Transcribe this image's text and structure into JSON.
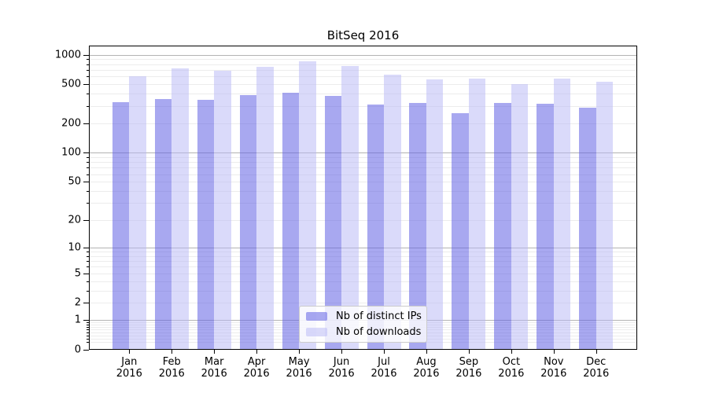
{
  "chart_data": {
    "type": "bar",
    "title": "BitSeq 2016",
    "categories": [
      "Jan",
      "Feb",
      "Mar",
      "Apr",
      "May",
      "Jun",
      "Jul",
      "Aug",
      "Sep",
      "Oct",
      "Nov",
      "Dec"
    ],
    "x_sublabel": "2016",
    "series": [
      {
        "name": "Nb of distinct IPs",
        "color": "rgba(97,97,228,0.55)",
        "values": [
          330,
          355,
          345,
          390,
          410,
          380,
          310,
          320,
          255,
          320,
          315,
          290
        ]
      },
      {
        "name": "Nb of downloads",
        "color": "rgba(181,181,245,0.5)",
        "values": [
          600,
          720,
          685,
          750,
          850,
          765,
          620,
          560,
          575,
          505,
          565,
          530
        ]
      }
    ],
    "yscale": "symlog",
    "ylim": [
      0,
      1200
    ],
    "y_tick_values": [
      1000,
      500,
      200,
      100,
      50,
      20,
      10,
      5,
      2,
      1,
      0
    ],
    "y_major_gridlines": [
      1000,
      100,
      10,
      1
    ],
    "grid": true,
    "legend_position": "lower center",
    "colors": {
      "major_grid": "#b3b3b3",
      "minor_grid": "#ececec",
      "spine": "#000000"
    }
  }
}
